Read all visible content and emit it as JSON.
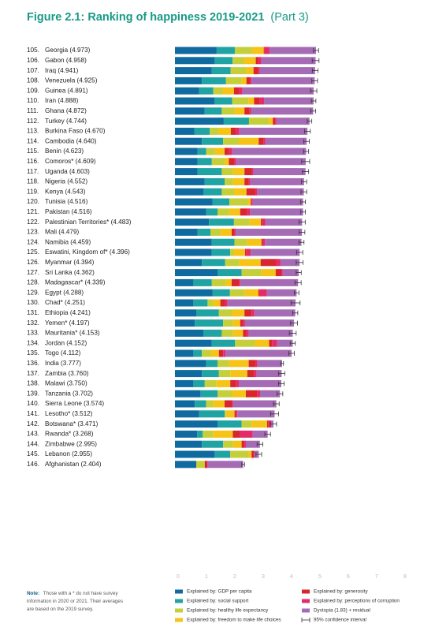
{
  "chart_data": {
    "type": "stacked-bar-horizontal",
    "title": "Figure 2.1: Ranking of happiness 2019-2021",
    "title_part": "(Part 3)",
    "ranks": [
      "105.",
      "106.",
      "107.",
      "108.",
      "109.",
      "110.",
      "111.",
      "112.",
      "113.",
      "114.",
      "115.",
      "116.",
      "117.",
      "118.",
      "119.",
      "120.",
      "121.",
      "122.",
      "123.",
      "124.",
      "125.",
      "126.",
      "127.",
      "128.",
      "129.",
      "130.",
      "131.",
      "132.",
      "133.",
      "134.",
      "135.",
      "136.",
      "137.",
      "138.",
      "139.",
      "140.",
      "141.",
      "142.",
      "143.",
      "144.",
      "145.",
      "146."
    ],
    "categories": [
      "Georgia (4.973)",
      "Gabon (4.958)",
      "Iraq (4.941)",
      "Venezuela (4.925)",
      "Guinea (4.891)",
      "Iran (4.888)",
      "Ghana (4.872)",
      "Turkey (4.744)",
      "Burkina Faso (4.670)",
      "Cambodia (4.640)",
      "Benin (4.623)",
      "Comoros* (4.609)",
      "Uganda (4.603)",
      "Nigeria (4.552)",
      "Kenya (4.543)",
      "Tunisia (4.516)",
      "Pakistan (4.516)",
      "Palestinian Territories* (4.483)",
      "Mali (4.479)",
      "Namibia (4.459)",
      "Eswatini, Kingdom of* (4.396)",
      "Myanmar (4.394)",
      "Sri Lanka (4.362)",
      "Madagascar* (4.339)",
      "Egypt (4.288)",
      "Chad* (4.251)",
      "Ethiopia (4.241)",
      "Yemen* (4.197)",
      "Mauritania* (4.153)",
      "Jordan (4.152)",
      "Togo (4.112)",
      "India (3.777)",
      "Zambia (3.760)",
      "Malawi (3.750)",
      "Tanzania (3.702)",
      "Sierra Leone (3.574)",
      "Lesotho* (3.512)",
      "Botswana* (3.471)",
      "Rwanda* (3.268)",
      "Zimbabwe (2.995)",
      "Lebanon (2.955)",
      "Afghanistan (2.404)"
    ],
    "series": [
      {
        "name": "Explained by: GDP per capita",
        "color": "#0f6b9f",
        "values": [
          1.47,
          1.4,
          1.3,
          0.95,
          0.85,
          1.4,
          1.05,
          1.72,
          0.68,
          0.95,
          0.8,
          0.8,
          0.8,
          1.05,
          1.0,
          1.32,
          1.1,
          1.2,
          0.8,
          1.3,
          1.3,
          0.95,
          1.5,
          0.65,
          1.32,
          0.65,
          0.75,
          0.7,
          1.0,
          1.3,
          0.65,
          1.1,
          0.95,
          0.65,
          0.9,
          0.7,
          0.85,
          1.5,
          0.78,
          0.95,
          1.4,
          0.75
        ]
      },
      {
        "name": "Explained by: social support",
        "color": "#1fa3a3",
        "values": [
          0.64,
          0.63,
          0.66,
          0.85,
          0.5,
          0.62,
          0.6,
          0.89,
          0.55,
          0.75,
          0.3,
          0.5,
          0.85,
          0.7,
          0.65,
          0.6,
          0.4,
          0.88,
          0.45,
          0.8,
          0.65,
          0.82,
          0.85,
          0.65,
          0.62,
          0.5,
          0.8,
          1.0,
          0.65,
          0.82,
          0.3,
          0.4,
          0.6,
          0.4,
          0.6,
          0.4,
          0.9,
          0.85,
          0.2,
          0.75,
          0.55,
          0.0
        ]
      },
      {
        "name": "Explained by: healthy life expectancy",
        "color": "#c5cf3a",
        "values": [
          0.6,
          0.4,
          0.55,
          0.55,
          0.33,
          0.57,
          0.45,
          0.7,
          0.32,
          0.55,
          0.3,
          0.45,
          0.4,
          0.3,
          0.42,
          0.65,
          0.4,
          0.55,
          0.35,
          0.45,
          0.12,
          0.5,
          0.7,
          0.5,
          0.5,
          0.2,
          0.45,
          0.35,
          0.4,
          0.7,
          0.3,
          0.4,
          0.4,
          0.4,
          0.5,
          0.25,
          0.05,
          0.35,
          0.36,
          0.35,
          0.65,
          0.3
        ]
      },
      {
        "name": "Explained by: freedom to make life choices",
        "color": "#f6c416",
        "values": [
          0.42,
          0.42,
          0.26,
          0.17,
          0.4,
          0.2,
          0.35,
          0.14,
          0.42,
          0.7,
          0.35,
          0.15,
          0.4,
          0.4,
          0.45,
          0.1,
          0.4,
          0.4,
          0.4,
          0.5,
          0.4,
          0.75,
          0.5,
          0.2,
          0.5,
          0.25,
          0.45,
          0.25,
          0.35,
          0.5,
          0.3,
          0.7,
          0.6,
          0.5,
          0.5,
          0.4,
          0.3,
          0.55,
          0.7,
          0.3,
          0.1,
          0.0
        ]
      },
      {
        "name": "Explained by: generosity",
        "color": "#d7262e",
        "values": [
          0.02,
          0.08,
          0.17,
          0.12,
          0.17,
          0.2,
          0.18,
          0.08,
          0.18,
          0.18,
          0.15,
          0.2,
          0.27,
          0.15,
          0.3,
          0.03,
          0.25,
          0.05,
          0.1,
          0.05,
          0.05,
          0.55,
          0.2,
          0.25,
          0.05,
          0.15,
          0.25,
          0.1,
          0.1,
          0.1,
          0.15,
          0.25,
          0.25,
          0.2,
          0.4,
          0.25,
          0.05,
          0.05,
          0.25,
          0.1,
          0.08,
          0.09
        ]
      },
      {
        "name": "Explained by: perceptions of corruption",
        "color": "#e52a6a",
        "values": [
          0.17,
          0.12,
          0.05,
          0.06,
          0.13,
          0.15,
          0.05,
          0.05,
          0.12,
          0.06,
          0.12,
          0.06,
          0.05,
          0.06,
          0.08,
          0.04,
          0.1,
          0.1,
          0.04,
          0.07,
          0.15,
          0.15,
          0.05,
          0.05,
          0.25,
          0.1,
          0.1,
          0.07,
          0.1,
          0.18,
          0.08,
          0.06,
          0.08,
          0.1,
          0.1,
          0.05,
          0.05,
          0.1,
          0.45,
          0.05,
          0.03,
          0.01
        ]
      },
      {
        "name": "Dystopia (1.83) + residual",
        "color": "#a56cb5",
        "values": [
          1.653,
          1.908,
          1.951,
          2.225,
          2.511,
          1.748,
          2.192,
          1.164,
          2.4,
          1.45,
          2.603,
          2.449,
          1.833,
          1.892,
          1.643,
          1.776,
          1.866,
          1.303,
          2.339,
          1.289,
          1.726,
          0.674,
          0.562,
          2.039,
          1.048,
          2.401,
          1.441,
          1.727,
          1.553,
          0.552,
          2.332,
          0.867,
          0.88,
          1.5,
          0.702,
          1.524,
          1.312,
          0.071,
          0.528,
          0.495,
          0.145,
          1.254
        ]
      }
    ],
    "ci_label": "95% confidence interval",
    "errors": [
      0.09,
      0.12,
      0.1,
      0.1,
      0.11,
      0.08,
      0.09,
      0.08,
      0.1,
      0.1,
      0.09,
      0.14,
      0.11,
      0.09,
      0.1,
      0.08,
      0.08,
      0.11,
      0.1,
      0.09,
      0.11,
      0.12,
      0.09,
      0.11,
      0.08,
      0.16,
      0.09,
      0.12,
      0.12,
      0.09,
      0.1,
      0.05,
      0.11,
      0.1,
      0.1,
      0.1,
      0.14,
      0.11,
      0.1,
      0.1,
      0.1,
      0.05
    ],
    "xlim": [
      0,
      8
    ],
    "xticks": [
      0,
      1,
      2,
      3,
      4,
      5,
      6,
      7,
      8
    ],
    "grid": false,
    "note_label": "Note:",
    "note_lines": [
      "Those with a * do not have survey",
      "information in 2020 or 2021. Their averages",
      "are based on the 2019 survey."
    ]
  }
}
